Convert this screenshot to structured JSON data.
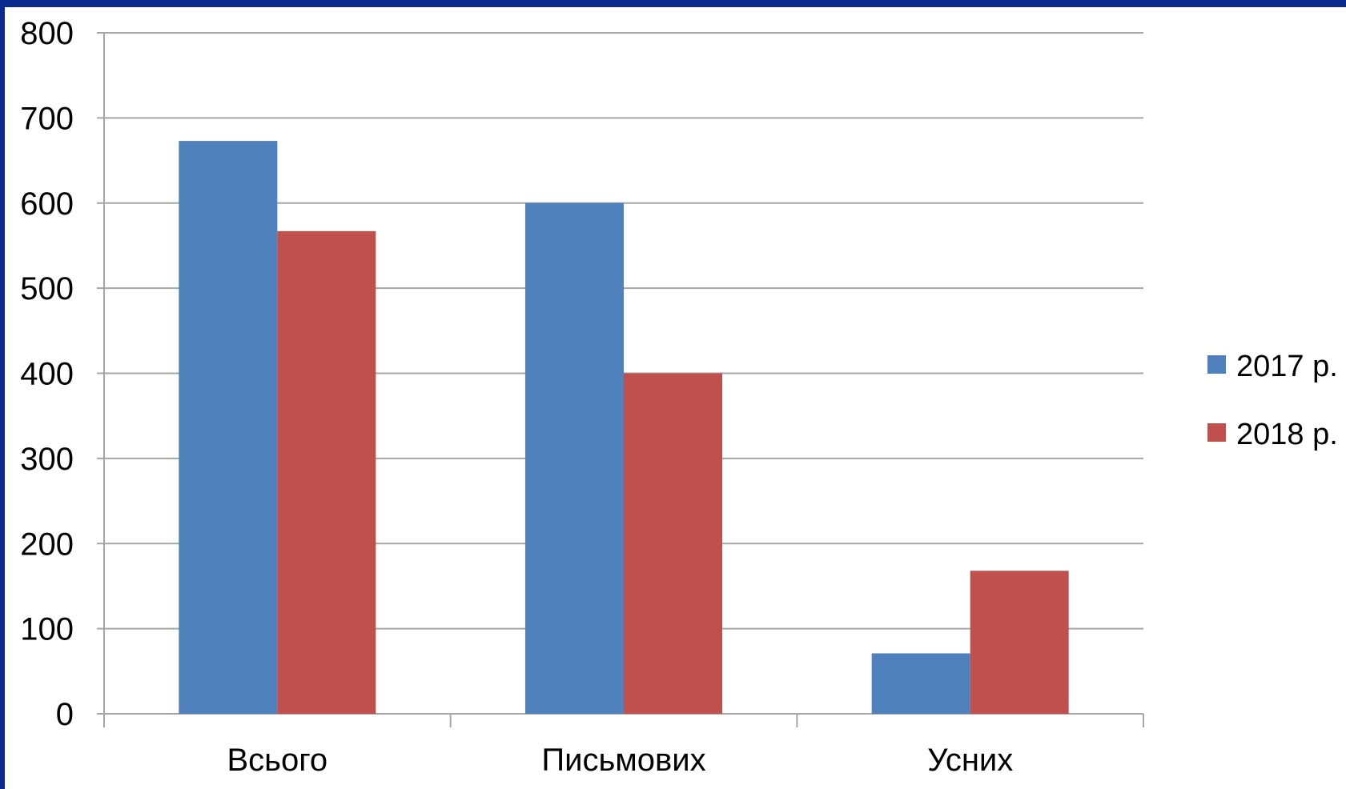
{
  "chart_data": {
    "type": "bar",
    "categories": [
      "Всього",
      "Письмових",
      "Усних"
    ],
    "series": [
      {
        "name": "2017 р.",
        "values": [
          673,
          600,
          71
        ],
        "color": "#4f81bd"
      },
      {
        "name": "2018 р.",
        "values": [
          567,
          400,
          168
        ],
        "color": "#c0504d"
      }
    ],
    "ylim": [
      0,
      800
    ],
    "yticks": [
      "0",
      "100",
      "200",
      "300",
      "400",
      "500",
      "600",
      "700",
      "800"
    ],
    "grid": true,
    "legend_position": "right",
    "xlabel": "",
    "ylabel": "",
    "title": ""
  },
  "frame_color": "#0b2a8f",
  "grid_color": "#a6a6a6"
}
